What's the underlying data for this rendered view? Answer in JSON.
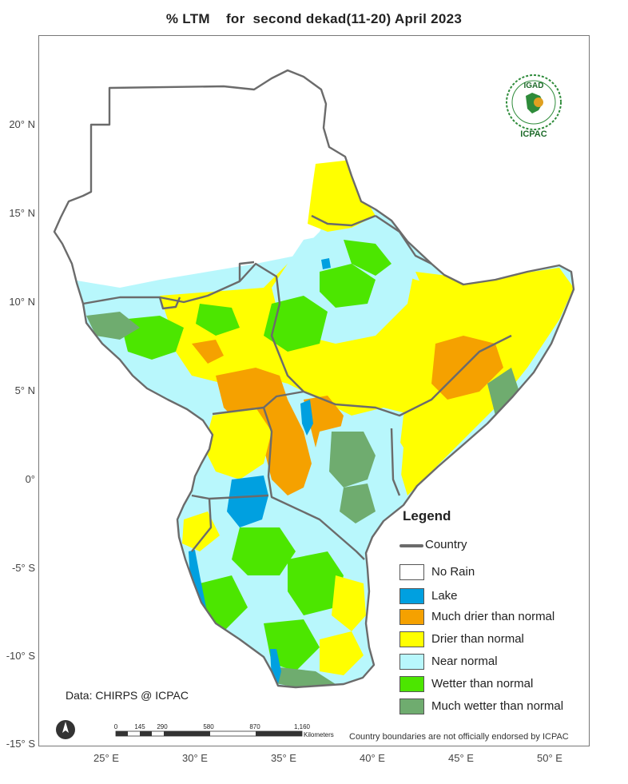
{
  "title": "% LTM    for  second dekad(11-20) April 2023",
  "latitude_labels": [
    "20° N",
    "15° N",
    "10° N",
    "5° N",
    "0°",
    "-5° S",
    "-10° S",
    "-15° S"
  ],
  "longitude_labels": [
    "25° E",
    "30° E",
    "35° E",
    "40° E",
    "45° E",
    "50° E"
  ],
  "legend": {
    "title": "Legend",
    "country": "Country",
    "items": [
      {
        "label": "No Rain",
        "color": "#ffffff"
      },
      {
        "label": "Lake",
        "color": "#00a0e0"
      },
      {
        "label": "Much drier than normal",
        "color": "#f5a100"
      },
      {
        "label": "Drier than normal",
        "color": "#ffff00"
      },
      {
        "label": "Near normal",
        "color": "#b8f7fc"
      },
      {
        "label": "Wetter than normal",
        "color": "#4ce600"
      },
      {
        "label": "Much wetter than normal",
        "color": "#6fac6f"
      }
    ]
  },
  "credit": "Data: CHIRPS @ ICPAC",
  "disclaimer": "Country boundaries are not officially endorsed by ICPAC",
  "scale": {
    "ticks": [
      "0",
      "145",
      "290",
      "580",
      "870",
      "1,160"
    ],
    "unit": "Kilometers"
  },
  "logo": {
    "top": "IGAD",
    "bottom": "ICPAC"
  },
  "colors": {
    "border": "#6b6b6b"
  }
}
